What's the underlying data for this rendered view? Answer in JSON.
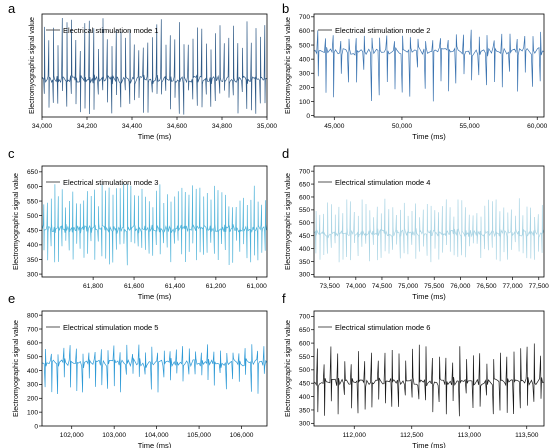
{
  "chart_data": [
    {
      "type": "line",
      "panel": "a",
      "series": [
        {
          "name": "Electrical stimulation mode 1",
          "color": "#2f5a86",
          "baseline": 450,
          "spike_max": 630,
          "spike_min": 345,
          "spike_count": 50
        }
      ],
      "xlabel": "Time (ms)",
      "ylabel": "Electromyographic signal value",
      "xlim": [
        34000,
        35000
      ],
      "xticks": [
        34000,
        34200,
        34400,
        34600,
        34800,
        35000
      ],
      "xtick_labels": [
        "34,000",
        "34,200",
        "34,400",
        "34,600",
        "34,800",
        "35,000"
      ],
      "ylim": [
        340,
        640
      ],
      "yticks": [],
      "ytick_labels": [],
      "legend": "top-left"
    },
    {
      "type": "line",
      "panel": "b",
      "series": [
        {
          "name": "Electrical stimulation mode 2",
          "color": "#3a73b0",
          "baseline": 455,
          "spike_max": 610,
          "spike_min": 100,
          "spike_count": 30
        }
      ],
      "xlabel": "Time (ms)",
      "ylabel": "Electromyographic signal value",
      "xlim": [
        43500,
        60500
      ],
      "xticks": [
        45000,
        50000,
        55000,
        60000
      ],
      "xtick_labels": [
        "45,000",
        "50,000",
        "55,000",
        "60,000"
      ],
      "ylim": [
        -10,
        720
      ],
      "yticks": [
        0,
        100,
        200,
        300,
        400,
        500,
        600,
        700
      ],
      "ytick_labels": [
        "0",
        "100",
        "200",
        "300",
        "400",
        "500",
        "600",
        "700"
      ],
      "legend": "top-left"
    },
    {
      "type": "line",
      "panel": "c",
      "series": [
        {
          "name": "Electrical stimulation mode 3",
          "color": "#4fb3d9",
          "baseline": 455,
          "spike_max": 615,
          "spike_min": 330,
          "spike_count": 62
        }
      ],
      "xlabel": "Time (ms)",
      "ylabel": "Electromyographic signal value",
      "xlim": [
        62050,
        60950
      ],
      "xticks": [
        61800,
        61600,
        61400,
        61200,
        61000
      ],
      "xtick_labels": [
        "61,800",
        "61,600",
        "61,400",
        "61,200",
        "61,000"
      ],
      "ylim": [
        290,
        670
      ],
      "yticks": [
        300,
        350,
        400,
        450,
        500,
        550,
        600,
        650
      ],
      "ytick_labels": [
        "300",
        "350",
        "400",
        "450",
        "500",
        "550",
        "600",
        "650"
      ],
      "legend": "top-left"
    },
    {
      "type": "line",
      "panel": "d",
      "series": [
        {
          "name": "Electrical stimulation mode 4",
          "color": "#a9d4e4",
          "baseline": 460,
          "spike_max": 595,
          "spike_min": 345,
          "spike_count": 60
        }
      ],
      "xlabel": "Time (ms)",
      "ylabel": "Electromyographic signal value",
      "xlim": [
        73200,
        77600
      ],
      "xticks": [
        73500,
        74000,
        74500,
        75000,
        75500,
        76000,
        76500,
        77000,
        77500
      ],
      "xtick_labels": [
        "73,500",
        "74,000",
        "74,500",
        "75,000",
        "75,500",
        "76,000",
        "76,500",
        "77,000",
        "77,500"
      ],
      "ylim": [
        290,
        720
      ],
      "yticks": [
        300,
        350,
        400,
        450,
        500,
        550,
        600,
        650,
        700
      ],
      "ytick_labels": [
        "300",
        "350",
        "400",
        "450",
        "500",
        "550",
        "600",
        "650",
        "700"
      ],
      "legend": "top-left"
    },
    {
      "type": "line",
      "panel": "e",
      "series": [
        {
          "name": "Electrical stimulation mode 5",
          "color": "#2e9ad6",
          "baseline": 455,
          "spike_max": 590,
          "spike_min": 230,
          "spike_count": 36
        }
      ],
      "xlabel": "Time (ms)",
      "ylabel": "Electromyographic signal value",
      "xlim": [
        101300,
        106600
      ],
      "xticks": [
        102000,
        103000,
        104000,
        105000,
        106000
      ],
      "xtick_labels": [
        "102,000",
        "103,000",
        "104,000",
        "105,000",
        "106,000"
      ],
      "ylim": [
        0,
        830
      ],
      "yticks": [
        0,
        100,
        200,
        300,
        400,
        500,
        600,
        700,
        800
      ],
      "ytick_labels": [
        "0",
        "100",
        "200",
        "300",
        "400",
        "500",
        "600",
        "700",
        "800"
      ],
      "legend": "top-left"
    },
    {
      "type": "line",
      "panel": "f",
      "series": [
        {
          "name": "Electrical stimulation mode 6",
          "color": "#1a1a1a",
          "baseline": 455,
          "spike_max": 600,
          "spike_min": 325,
          "spike_count": 34
        }
      ],
      "xlabel": "Time (ms)",
      "ylabel": "Electromyographic signal value",
      "xlim": [
        111650,
        113650
      ],
      "xticks": [
        112000,
        112500,
        113000,
        113500
      ],
      "xtick_labels": [
        "112,000",
        "112,500",
        "113,000",
        "113,500"
      ],
      "ylim": [
        290,
        720
      ],
      "yticks": [
        300,
        350,
        400,
        450,
        500,
        550,
        600,
        650,
        700
      ],
      "ytick_labels": [
        "300",
        "350",
        "400",
        "450",
        "500",
        "550",
        "600",
        "650",
        "700"
      ],
      "legend": "top-left"
    }
  ]
}
